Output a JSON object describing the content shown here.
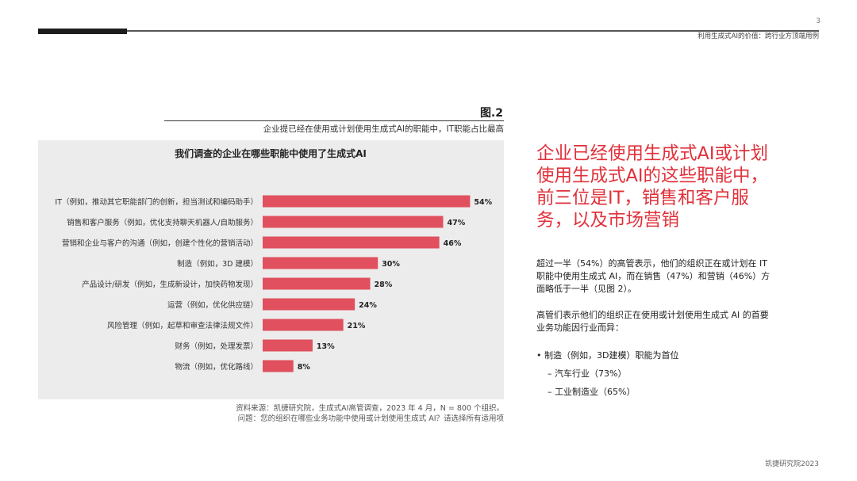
{
  "header": {
    "page_number": "3",
    "subtitle": "利用生成式AI的价值：跨行业方顶端用例"
  },
  "figure": {
    "label": "图.2",
    "caption": "企业提已经在使用或计划使用生成式AI的职能中，IT职能占比最高"
  },
  "chart_data": {
    "type": "bar",
    "orientation": "horizontal",
    "title": "我们调查的企业在哪些职能中使用了生成式AI",
    "categories": [
      "IT（例如，推动其它职能部门的创新，担当测试和编码助手）",
      "销售和客户服务（例如，优化支持聊天机器人/自助服务）",
      "营销和企业与客户的沟通（例如，创建个性化的营销活动）",
      "制造（例如，3D 建模）",
      "产品设计/研发（例如，生成新设计，加快药物发现）",
      "运营（例如，优化供应链）",
      "风险管理（例如，起草和审查法律法规文件）",
      "财务（例如，处理发票）",
      "物流（例如，优化路线）"
    ],
    "values": [
      54,
      47,
      46,
      30,
      28,
      24,
      21,
      13,
      8
    ],
    "value_labels": [
      "54%",
      "47%",
      "46%",
      "30%",
      "28%",
      "24%",
      "21%",
      "13%",
      "8%"
    ],
    "unit": "%",
    "xlim": [
      0,
      60
    ],
    "bar_color": "#e0505e",
    "grid": false,
    "legend": "none"
  },
  "source": {
    "line1": "资料来源：凯捷研究院，生成式AI高管调查，2023 年 4 月，N = 800 个组织。",
    "line2": "问题：您的组织在哪些业务功能中使用或计划使用生成式 AI？请选择所有适用项"
  },
  "sidebar": {
    "headline": "企业已经使用生成式AI或计划使用生成式AI的这些职能中，前三位是IT，销售和客户服务，以及市场营销",
    "headline_color": "#e0303a",
    "para1": "超过一半（54%）的高管表示，他们的组织正在或计划在 IT 职能中使用生成式 AI，而在销售（47%）和营销（46%）方面略低于一半（见图 2）。",
    "para2": "高管们表示他们的组织正在使用或计划使用生成式 AI 的首要业务功能因行业而异：",
    "bullet_main": "• 制造（例如，3D建模）职能为首位",
    "bullet_sub1": "– 汽车行业（73%）",
    "bullet_sub2": "– 工业制造业（65%）"
  },
  "footer": {
    "text": "凯捷研究院2023"
  }
}
